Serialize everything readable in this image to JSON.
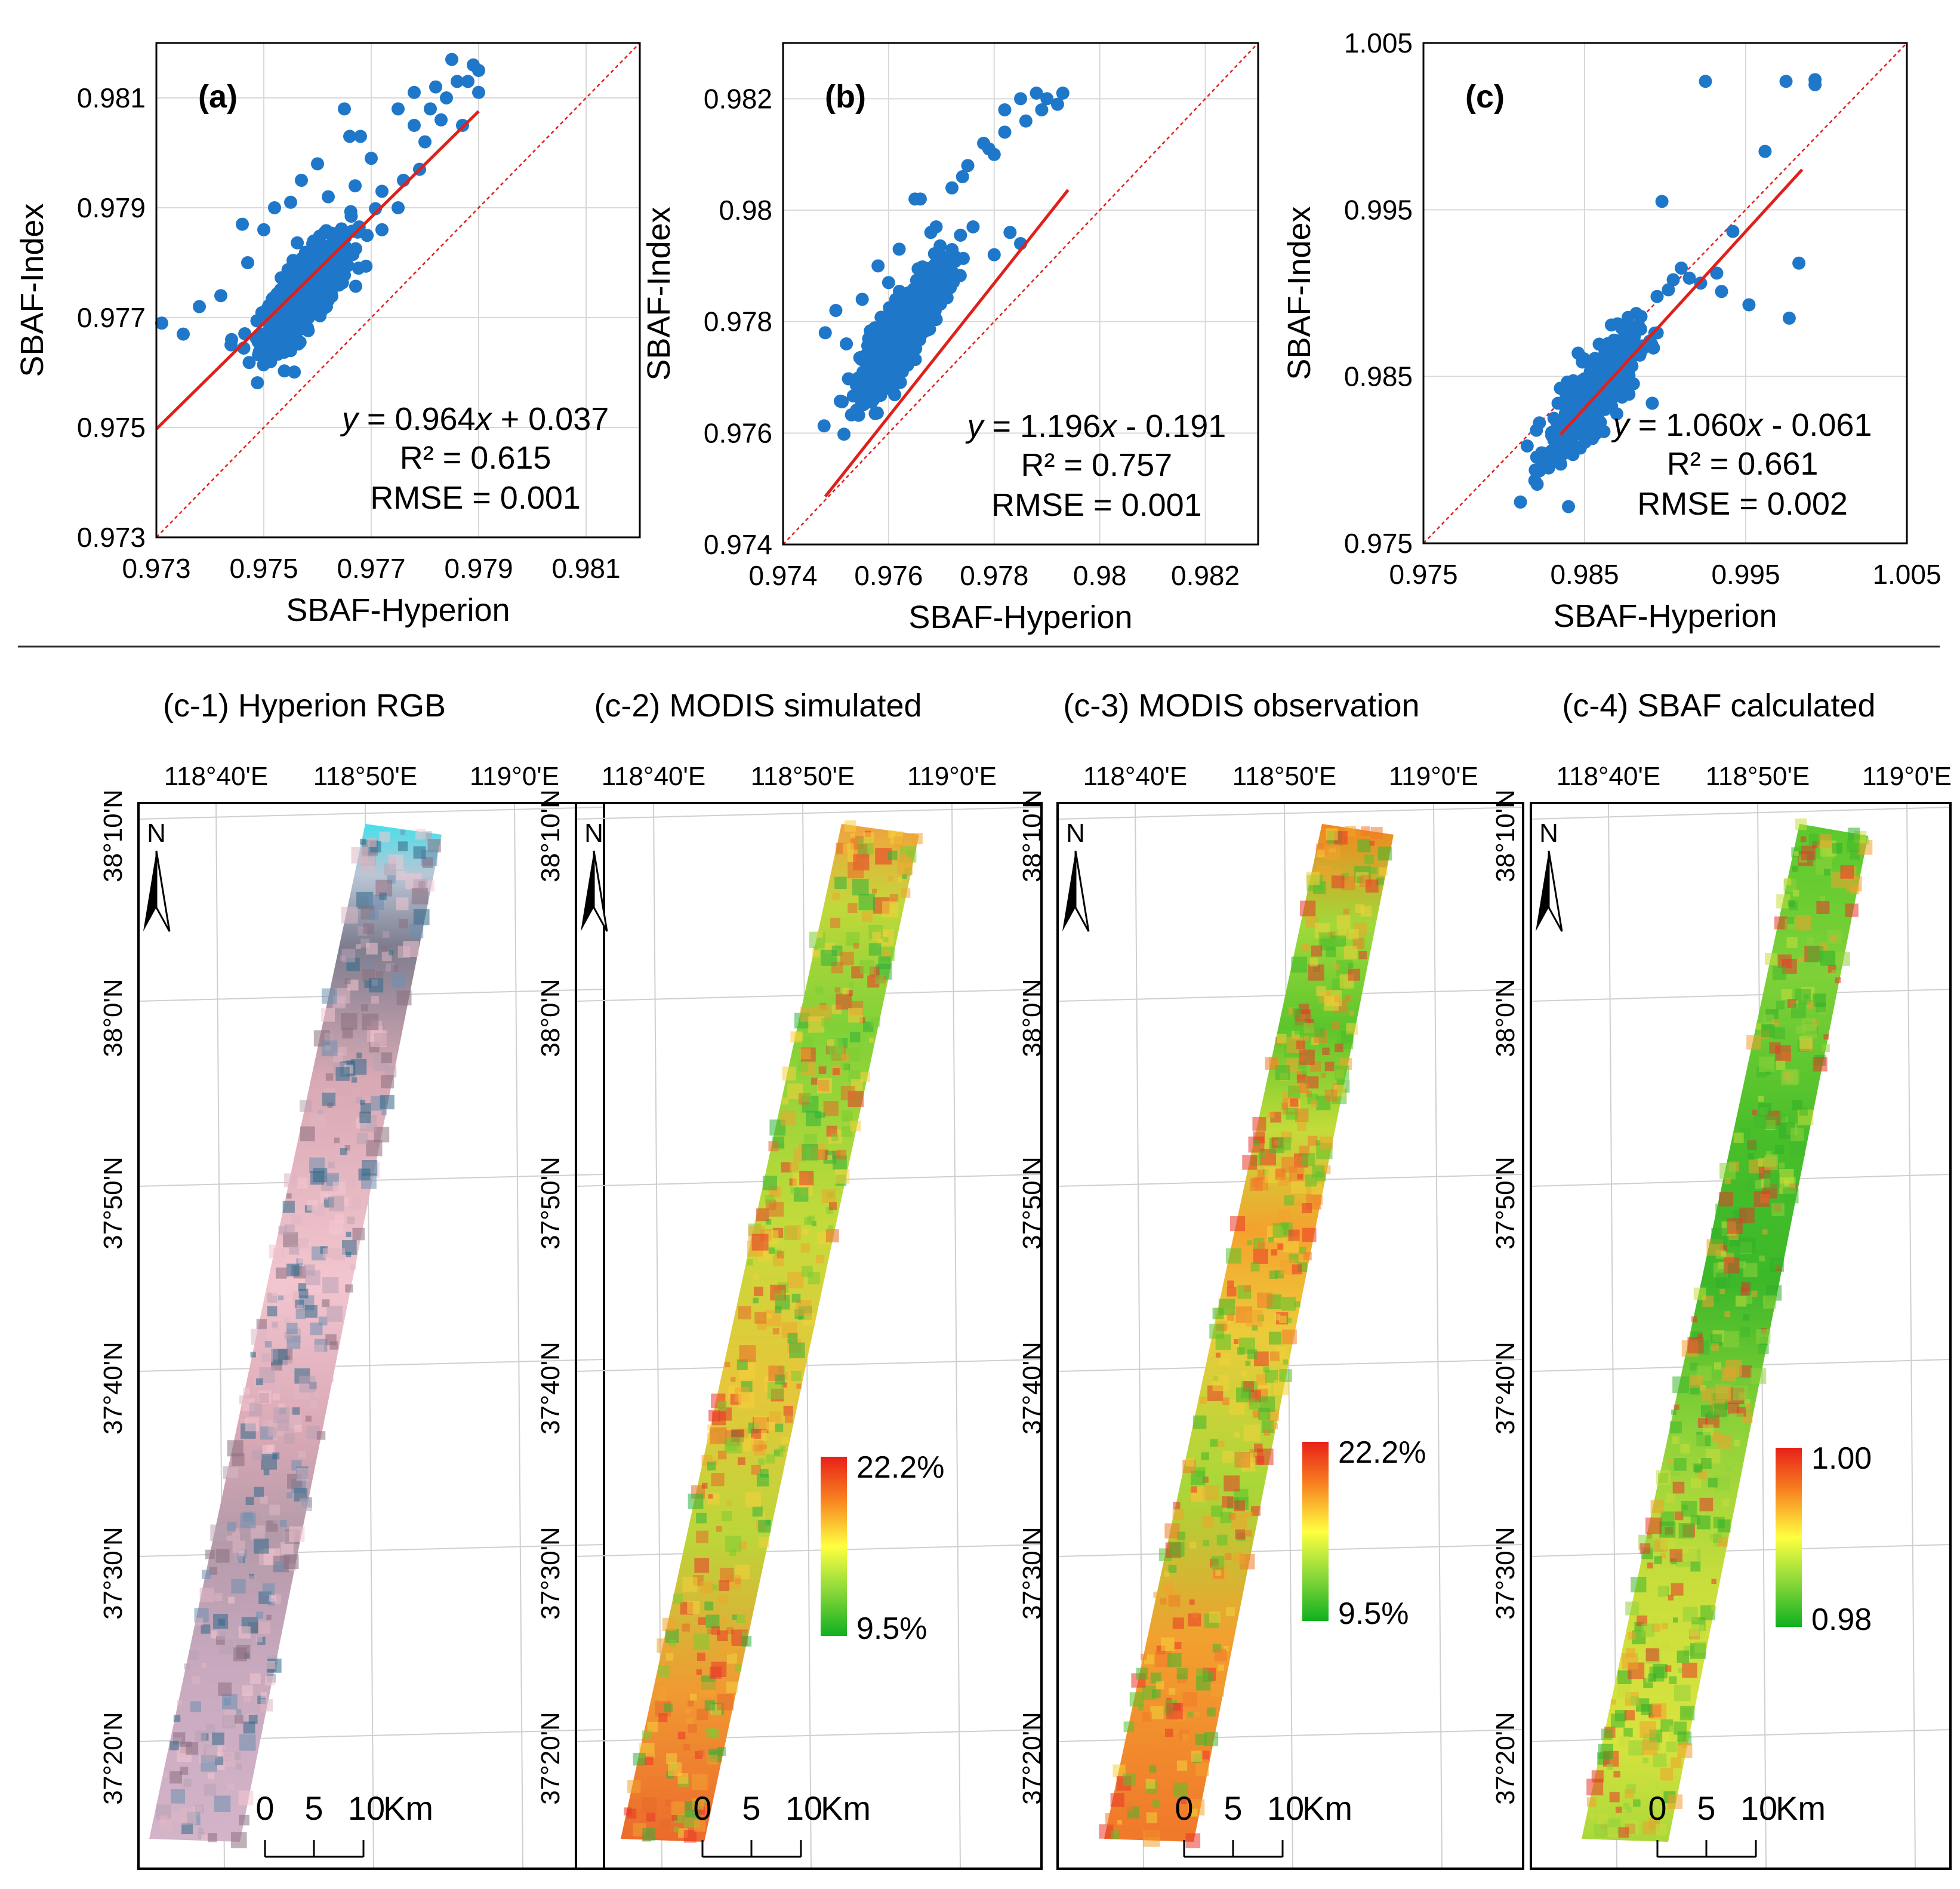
{
  "colors": {
    "points": "#1f77c9",
    "fit_line": "#e0201b",
    "one_to_one": "#e0201b",
    "grid": "#d9d9d9",
    "frame": "#000000",
    "ramp_high": "#e8201a",
    "ramp_mid": "#ffff40",
    "ramp_low": "#10b020"
  },
  "chart_data": [
    {
      "type": "scatter",
      "panel_label": "(a)",
      "xlabel": "SBAF-Hyperion",
      "ylabel": "SBAF-Index",
      "xlim": [
        0.973,
        0.982
      ],
      "ylim": [
        0.973,
        0.982
      ],
      "xticks": [
        "0.973",
        "0.975",
        "0.977",
        "0.979",
        "0.981"
      ],
      "yticks": [
        "0.973",
        "0.975",
        "0.977",
        "0.979",
        "0.981"
      ],
      "xtick_values": [
        0.973,
        0.975,
        0.977,
        0.979,
        0.981
      ],
      "ytick_values": [
        0.973,
        0.975,
        0.977,
        0.979,
        0.981
      ],
      "fit": {
        "slope": 0.964,
        "intercept": 0.037,
        "x_range": [
          0.973,
          0.979
        ]
      },
      "equation": {
        "y": "y",
        "eq": " = 0.964",
        "x": "x",
        "rest": " + 0.037"
      },
      "r2": "R² = 0.615",
      "rmse": "RMSE = 0.001",
      "cluster": {
        "x_center": 0.9758,
        "y_center": 0.9775,
        "n_points": 600
      },
      "series": [
        {
          "name": "samples",
          "x": [
            0.9731,
            0.9735,
            0.9738,
            0.9742,
            0.9744,
            0.9747,
            0.975,
            0.9752,
            0.9755,
            0.9757,
            0.9762,
            0.9766,
            0.977,
            0.9772,
            0.9775,
            0.9778,
            0.9782,
            0.9785,
            0.9788,
            0.979,
            0.9778,
            0.9781,
            0.9783,
            0.9786,
            0.9789,
            0.9772,
            0.9768,
            0.9765,
            0.976,
            0.9758,
            0.9755,
            0.975,
            0.9746,
            0.9763,
            0.9767,
            0.9775,
            0.978,
            0.9784,
            0.9787,
            0.979,
            0.9776,
            0.9779
          ],
          "y": [
            0.9769,
            0.9767,
            0.9772,
            0.9774,
            0.9766,
            0.978,
            0.9786,
            0.979,
            0.9791,
            0.9795,
            0.9792,
            0.9803,
            0.9799,
            0.9793,
            0.979,
            0.9811,
            0.9812,
            0.9817,
            0.9813,
            0.9811,
            0.9805,
            0.9808,
            0.9806,
            0.9813,
            0.9816,
            0.9786,
            0.9803,
            0.9808,
            0.9798,
            0.9771,
            0.9764,
            0.9767,
            0.9787,
            0.9784,
            0.9794,
            0.9808,
            0.9802,
            0.981,
            0.9805,
            0.9815,
            0.9795,
            0.9797
          ]
        }
      ]
    },
    {
      "type": "scatter",
      "panel_label": "(b)",
      "xlabel": "SBAF-Hyperion",
      "ylabel": "SBAF-Index",
      "xlim": [
        0.974,
        0.983
      ],
      "ylim": [
        0.974,
        0.983
      ],
      "xticks": [
        "0.974",
        "0.976",
        "0.978",
        "0.98",
        "0.982"
      ],
      "yticks": [
        "0.974",
        "0.976",
        "0.978",
        "0.98",
        "0.982"
      ],
      "xtick_values": [
        0.974,
        0.976,
        0.978,
        0.98,
        0.982
      ],
      "ytick_values": [
        0.974,
        0.976,
        0.978,
        0.98,
        0.982
      ],
      "fit": {
        "slope": 1.196,
        "intercept": -0.191,
        "x_range": [
          0.9748,
          0.9794
        ]
      },
      "equation": {
        "y": "y",
        "eq": " = 1.196",
        "x": "x",
        "rest": " - 0.191"
      },
      "r2": "R² = 0.757",
      "rmse": "RMSE = 0.001",
      "cluster": {
        "x_center": 0.9763,
        "y_center": 0.9779,
        "n_points": 600
      },
      "series": [
        {
          "name": "samples",
          "x": [
            0.9748,
            0.975,
            0.9752,
            0.9755,
            0.9758,
            0.976,
            0.9762,
            0.9765,
            0.9768,
            0.977,
            0.9772,
            0.9775,
            0.9778,
            0.978,
            0.9782,
            0.9785,
            0.9788,
            0.979,
            0.9792,
            0.9785,
            0.9783,
            0.978,
            0.9776,
            0.9772,
            0.9769,
            0.9766,
            0.9786,
            0.9789,
            0.9793,
            0.9774,
            0.9779,
            0.9782
          ],
          "y": [
            0.9778,
            0.9782,
            0.9776,
            0.9784,
            0.979,
            0.9787,
            0.9793,
            0.9802,
            0.9796,
            0.9791,
            0.9804,
            0.9808,
            0.9812,
            0.981,
            0.9818,
            0.982,
            0.9821,
            0.982,
            0.9819,
            0.9794,
            0.9796,
            0.9792,
            0.9797,
            0.9789,
            0.9797,
            0.9802,
            0.9816,
            0.9818,
            0.9821,
            0.9806,
            0.9811,
            0.9814
          ]
        }
      ]
    },
    {
      "type": "scatter",
      "panel_label": "(c)",
      "xlabel": "SBAF-Hyperion",
      "ylabel": "SBAF-Index",
      "xlim": [
        0.975,
        1.005
      ],
      "ylim": [
        0.975,
        1.005
      ],
      "xticks": [
        "0.975",
        "0.985",
        "0.995",
        "1.005"
      ],
      "yticks": [
        "0.975",
        "0.985",
        "0.995",
        "1.005"
      ],
      "xtick_values": [
        0.975,
        0.985,
        0.995,
        1.005
      ],
      "ytick_values": [
        0.975,
        0.985,
        0.995,
        1.005
      ],
      "fit": {
        "slope": 1.06,
        "intercept": -0.061,
        "x_range": [
          0.9835,
          0.9985
        ]
      },
      "equation": {
        "y": "y",
        "eq": " = 1.060",
        "x": "x",
        "rest": " - 0.061"
      },
      "r2": "R² = 0.661",
      "rmse": "RMSE = 0.002",
      "cluster": {
        "x_center": 0.9855,
        "y_center": 0.9838,
        "n_points": 450
      },
      "series": [
        {
          "name": "samples",
          "x": [
            0.9925,
            0.9975,
            0.9993,
            0.9993,
            0.9898,
            0.9942,
            0.9962,
            0.9983,
            0.9977,
            0.9952,
            0.9935,
            0.991,
            0.9905,
            0.9895,
            0.9885,
            0.9877,
            0.987,
            0.9866,
            0.9888,
            0.9915,
            0.9902,
            0.9922,
            0.9932,
            0.9892,
            0.9862,
            0.9846,
            0.984
          ],
          "y": [
            1.0027,
            1.0027,
            1.0028,
            1.0025,
            0.9955,
            0.9937,
            0.9985,
            0.9918,
            0.9885,
            0.9893,
            0.9901,
            0.9915,
            0.9908,
            0.9898,
            0.9886,
            0.9879,
            0.9871,
            0.9862,
            0.9868,
            0.9909,
            0.9902,
            0.9906,
            0.9912,
            0.9834,
            0.9817,
            0.9864,
            0.9772
          ]
        }
      ]
    }
  ],
  "maps": [
    {
      "title": "(c-1) Hyperion RGB",
      "legend": null
    },
    {
      "title": "(c-2) MODIS simulated",
      "legend": {
        "high": "22.2%",
        "low": "9.5%"
      }
    },
    {
      "title": "(c-3) MODIS observation",
      "legend": {
        "high": "22.2%",
        "low": "9.5%"
      }
    },
    {
      "title": "(c-4) SBAF calculated",
      "legend": {
        "high": "1.00",
        "low": "0.98"
      }
    }
  ],
  "map_axes": {
    "lon_labels": [
      "118°40'E",
      "118°50'E",
      "119°0'E"
    ],
    "lat_labels": [
      "38°10'N",
      "38°0'N",
      "37°50'N",
      "37°40'N",
      "37°30'N",
      "37°20'N"
    ]
  },
  "north_arrow": {
    "label": "N"
  },
  "scale_bar": {
    "labels": [
      "0",
      "5",
      "10"
    ],
    "unit": "Km"
  }
}
